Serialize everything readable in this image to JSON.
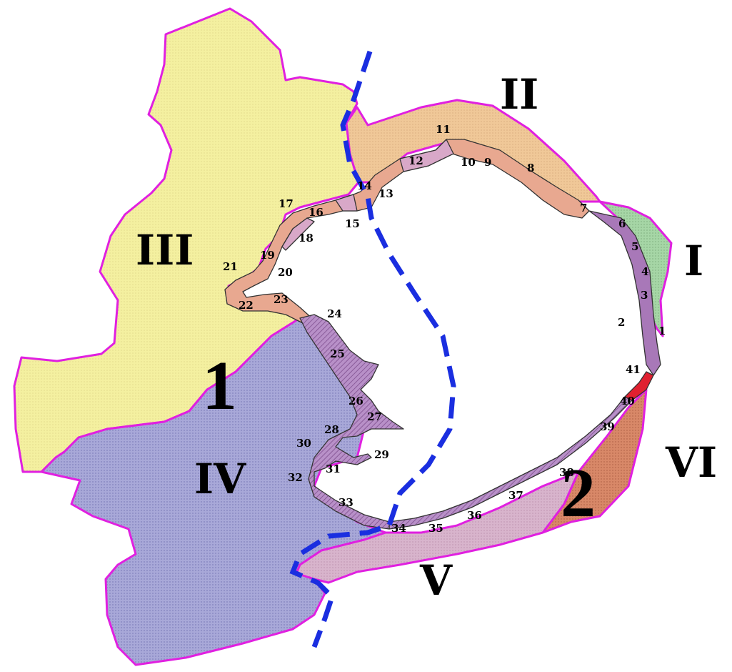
{
  "zones": [
    {
      "label": "I",
      "color": "#a6d6a6"
    },
    {
      "label": "II",
      "color": "#f0c898"
    },
    {
      "label": "III",
      "color": "#f4f0a0"
    },
    {
      "label": "IV",
      "color": "#a8a8d8"
    },
    {
      "label": "V",
      "color": "#d8b4cc"
    },
    {
      "label": "VI",
      "color": "#d88868"
    }
  ],
  "region_markers": [
    "1",
    "2"
  ],
  "segment_numbers": [
    "1",
    "2",
    "3",
    "4",
    "5",
    "6",
    "7",
    "8",
    "9",
    "10",
    "11",
    "12",
    "13",
    "14",
    "15",
    "16",
    "17",
    "18",
    "19",
    "20",
    "21",
    "22",
    "23",
    "24",
    "25",
    "26",
    "27",
    "28",
    "29",
    "30",
    "31",
    "32",
    "33",
    "34",
    "35",
    "36",
    "37",
    "38",
    "39",
    "40",
    "41"
  ],
  "colors": {
    "outline": "#e020e0",
    "dashed_line": "#1a2ee0",
    "segment_light": "#d8a8c8",
    "segment_dark": "#a878b8",
    "segment_orange": "#e8a890",
    "segment_red": "#e02030"
  }
}
